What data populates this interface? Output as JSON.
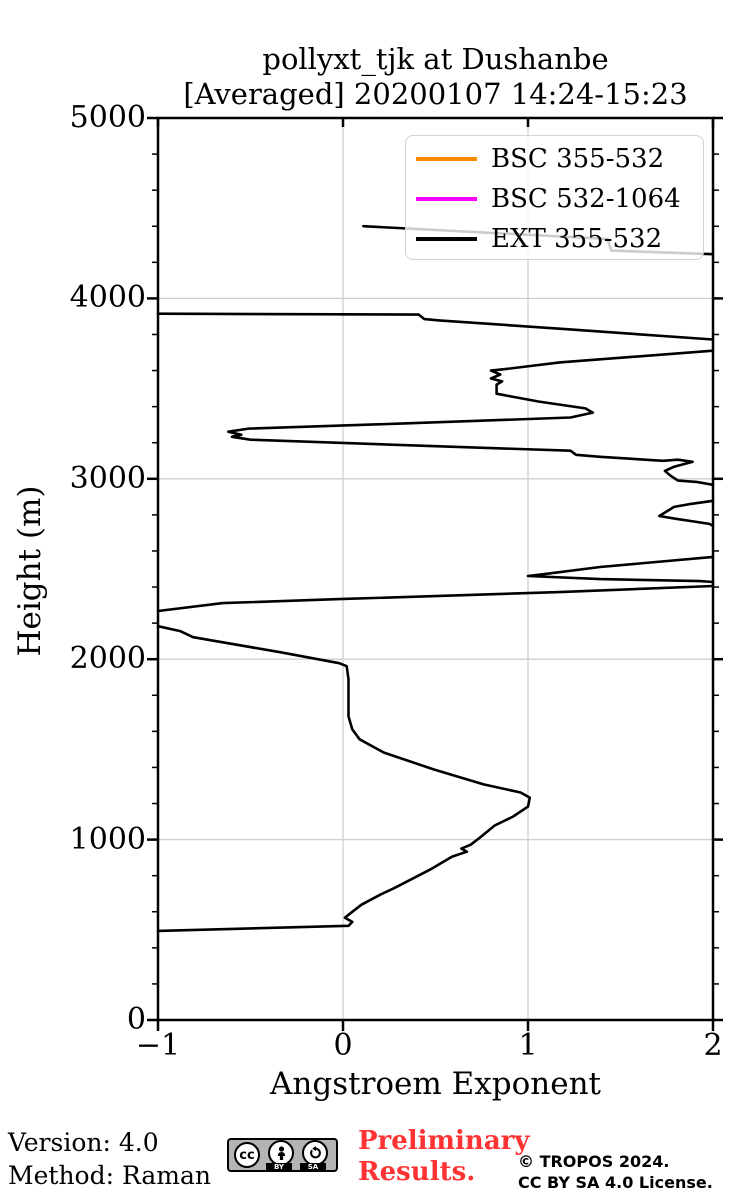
{
  "title": {
    "line1": "pollyxt_tjk at Dushanbe",
    "line2": "[Averaged] 20200107 14:24-15:23"
  },
  "legend": {
    "items": [
      {
        "label": "BSC 355-532",
        "color": "#ff8c00"
      },
      {
        "label": "BSC 532-1064",
        "color": "#ff00ff"
      },
      {
        "label": "EXT 355-532",
        "color": "#000000"
      }
    ]
  },
  "footer": {
    "version": "Version: 4.0",
    "method": "Method: Raman",
    "preliminary": "Preliminary Results.",
    "copyright_line1": "© TROPOS 2024.",
    "copyright_line2": "CC BY SA 4.0 License.",
    "badge": {
      "cc": "cc",
      "by": "BY",
      "sa": "SA"
    }
  },
  "chart_data": {
    "type": "line",
    "title": "pollyxt_tjk at Dushanbe [Averaged] 20200107 14:24-15:23",
    "xlabel": "Angstroem Exponent",
    "ylabel": "Height (m)",
    "xlim": [
      -1,
      2
    ],
    "ylim": [
      0,
      5000
    ],
    "xticks": [
      -1,
      0,
      1,
      2
    ],
    "xtick_labels": [
      "−1",
      "0",
      "1",
      "2"
    ],
    "yticks": [
      0,
      1000,
      2000,
      3000,
      4000,
      5000
    ],
    "ytick_labels": [
      "0",
      "1000",
      "2000",
      "3000",
      "4000",
      "5000"
    ],
    "y_minor_step": 200,
    "grid": true,
    "grid_color": "#cfcfcf",
    "legend_position": "upper right",
    "series": [
      {
        "name": "BSC 355-532",
        "color": "#ff8c00",
        "segments": []
      },
      {
        "name": "BSC 532-1064",
        "color": "#ff00ff",
        "segments": []
      },
      {
        "name": "EXT 355-532",
        "color": "#000000",
        "segments": [
          [
            [
              0.11,
              4400
            ],
            [
              1.43,
              4330
            ],
            [
              1.45,
              4265
            ],
            [
              2.0,
              4245
            ]
          ],
          [
            [
              -1.0,
              3915
            ],
            [
              0.41,
              3910
            ],
            [
              0.44,
              3885
            ],
            [
              0.52,
              3878
            ],
            [
              1.2,
              3830
            ],
            [
              2.0,
              3772
            ]
          ],
          [
            [
              2.0,
              3710
            ],
            [
              1.17,
              3645
            ],
            [
              0.89,
              3610
            ],
            [
              0.8,
              3600
            ],
            [
              0.85,
              3578
            ],
            [
              0.8,
              3556
            ],
            [
              0.86,
              3540
            ],
            [
              0.83,
              3522
            ],
            [
              0.83,
              3472
            ],
            [
              0.91,
              3456
            ],
            [
              1.06,
              3428
            ],
            [
              1.31,
              3390
            ],
            [
              1.35,
              3367
            ],
            [
              1.23,
              3340
            ],
            [
              0.31,
              3306
            ],
            [
              -0.51,
              3278
            ],
            [
              -0.62,
              3261
            ],
            [
              -0.55,
              3244
            ],
            [
              -0.6,
              3233
            ],
            [
              -0.5,
              3217
            ],
            [
              0.58,
              3178
            ],
            [
              1.23,
              3156
            ],
            [
              1.26,
              3133
            ],
            [
              1.39,
              3122
            ],
            [
              1.73,
              3100
            ],
            [
              1.81,
              3106
            ],
            [
              1.89,
              3094
            ],
            [
              1.79,
              3067
            ],
            [
              1.74,
              3044
            ],
            [
              1.77,
              3017
            ],
            [
              1.81,
              2990
            ],
            [
              1.91,
              2983
            ],
            [
              2.0,
              2967
            ]
          ],
          [
            [
              2.0,
              2878
            ],
            [
              1.88,
              2861
            ],
            [
              1.79,
              2844
            ],
            [
              1.71,
              2794
            ],
            [
              1.8,
              2778
            ],
            [
              1.91,
              2761
            ],
            [
              1.98,
              2750
            ],
            [
              2.0,
              2739
            ]
          ],
          [
            [
              2.0,
              2567
            ],
            [
              1.39,
              2511
            ],
            [
              1.09,
              2472
            ],
            [
              1.0,
              2461
            ],
            [
              1.39,
              2444
            ],
            [
              1.93,
              2433
            ],
            [
              2.0,
              2428
            ],
            [
              2.0,
              2406
            ],
            [
              1.17,
              2372
            ],
            [
              -0.02,
              2333
            ],
            [
              -0.65,
              2311
            ],
            [
              -1.0,
              2267
            ]
          ],
          [
            [
              -1.0,
              2183
            ],
            [
              -0.88,
              2156
            ],
            [
              -0.81,
              2122
            ],
            [
              -0.34,
              2039
            ],
            [
              -0.02,
              1978
            ],
            [
              0.02,
              1961
            ],
            [
              0.03,
              1889
            ],
            [
              0.03,
              1778
            ],
            [
              0.03,
              1683
            ],
            [
              0.05,
              1611
            ],
            [
              0.09,
              1556
            ],
            [
              0.22,
              1483
            ],
            [
              0.49,
              1389
            ],
            [
              0.76,
              1306
            ],
            [
              0.96,
              1261
            ],
            [
              1.01,
              1233
            ],
            [
              1.0,
              1183
            ],
            [
              0.92,
              1128
            ],
            [
              0.82,
              1078
            ],
            [
              0.74,
              1011
            ],
            [
              0.69,
              972
            ],
            [
              0.64,
              950
            ],
            [
              0.67,
              933
            ],
            [
              0.59,
              906
            ],
            [
              0.47,
              833
            ],
            [
              0.28,
              733
            ],
            [
              0.2,
              694
            ],
            [
              0.1,
              639
            ],
            [
              0.05,
              600
            ],
            [
              0.01,
              567
            ],
            [
              0.05,
              544
            ],
            [
              0.03,
              522
            ],
            [
              -1.0,
              494
            ]
          ]
        ]
      }
    ]
  }
}
